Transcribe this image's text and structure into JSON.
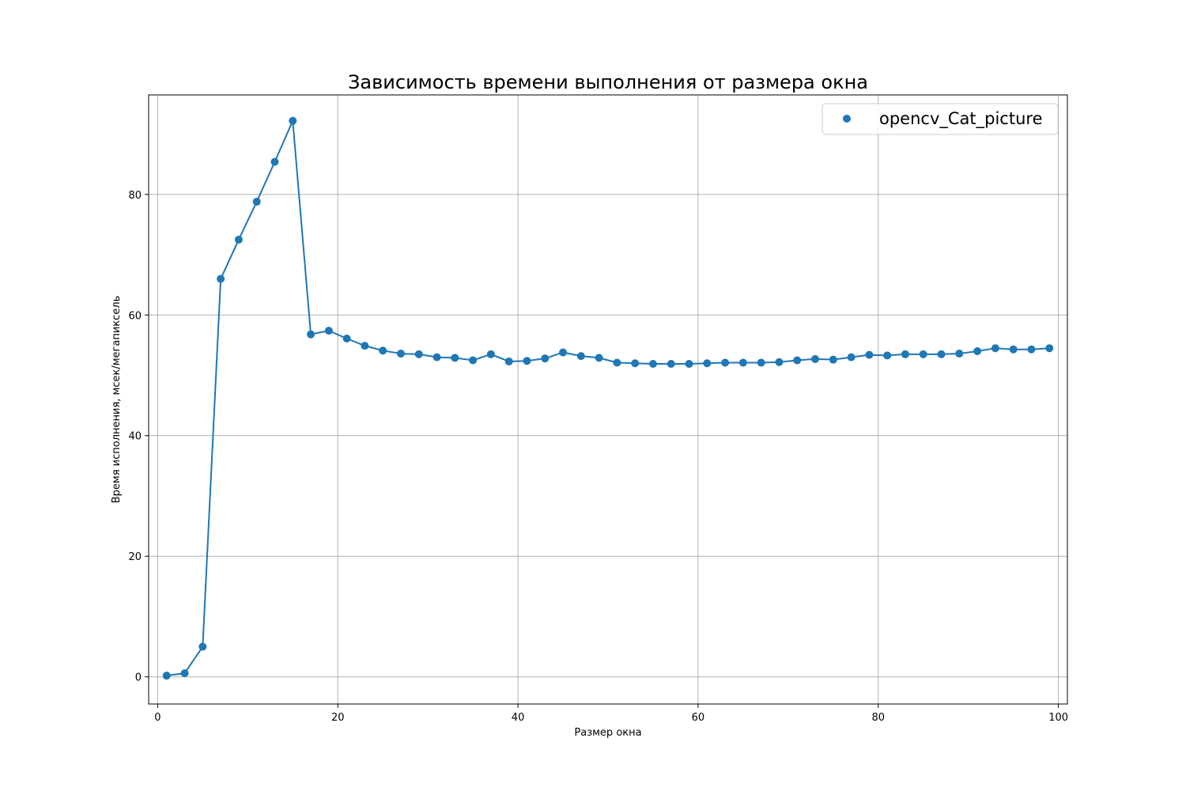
{
  "chart_data": {
    "type": "line",
    "title": "Зависимость времени выполнения от размера окна",
    "xlabel": "Размер окна",
    "ylabel": "Время исполнения, мсек/мегапиксель",
    "xlim": [
      -1,
      101
    ],
    "ylim": [
      -4.5,
      96.5
    ],
    "xticks": [
      0,
      20,
      40,
      60,
      80,
      100
    ],
    "yticks": [
      0,
      20,
      40,
      60,
      80
    ],
    "grid": true,
    "legend_position": "top-right",
    "series": [
      {
        "name": "opencv_Cat_picture",
        "color": "#1f77b4",
        "marker": "circle",
        "x": [
          1,
          3,
          5,
          7,
          9,
          11,
          13,
          15,
          17,
          19,
          21,
          23,
          25,
          27,
          29,
          31,
          33,
          35,
          37,
          39,
          41,
          43,
          45,
          47,
          49,
          51,
          53,
          55,
          57,
          59,
          61,
          63,
          65,
          67,
          69,
          71,
          73,
          75,
          77,
          79,
          81,
          83,
          85,
          87,
          89,
          91,
          93,
          95,
          97,
          99
        ],
        "y": [
          0.2,
          0.6,
          5.0,
          66.0,
          72.5,
          78.8,
          85.4,
          92.2,
          56.8,
          57.4,
          56.1,
          54.9,
          54.1,
          53.6,
          53.5,
          53.0,
          52.9,
          52.5,
          53.5,
          52.3,
          52.4,
          52.8,
          53.8,
          53.2,
          52.9,
          52.1,
          52.0,
          51.9,
          51.9,
          51.9,
          52.0,
          52.1,
          52.1,
          52.1,
          52.2,
          52.5,
          52.7,
          52.6,
          53.0,
          53.4,
          53.3,
          53.5,
          53.5,
          53.5,
          53.6,
          54.0,
          54.5,
          54.3,
          54.3,
          54.5
        ]
      }
    ]
  }
}
